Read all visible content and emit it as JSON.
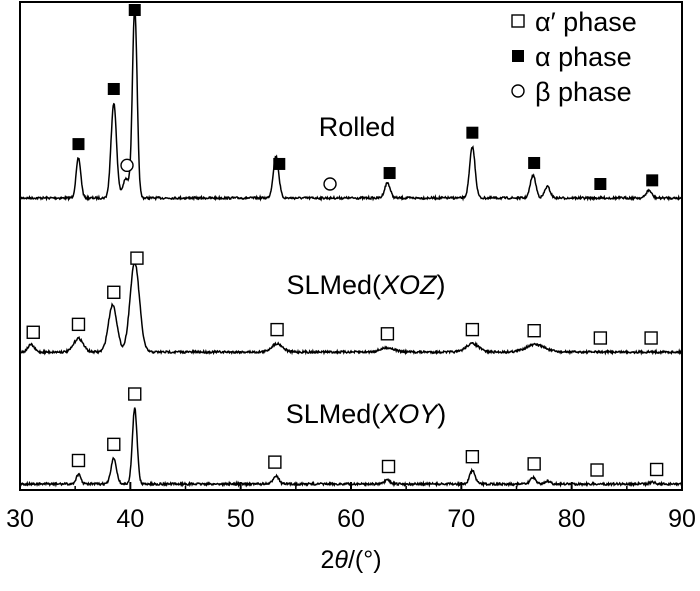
{
  "chart_data": {
    "type": "line",
    "xlabel_main": "2",
    "xlabel_theta": "θ",
    "xlabel_unit": "/(°)",
    "xlim": [
      30,
      90
    ],
    "x_ticks": [
      "30",
      "40",
      "50",
      "60",
      "70",
      "80",
      "90"
    ],
    "legend": {
      "placement": "top-right",
      "entries": [
        {
          "label": "α′ phase",
          "marker": "open-square"
        },
        {
          "label": "α phase",
          "marker": "filled-square"
        },
        {
          "label": "β phase",
          "marker": "open-circle"
        }
      ]
    },
    "series": [
      {
        "label_plain": "Rolled",
        "label_prefix": "",
        "label_italic": "",
        "label_suffix": "",
        "peaks": [
          {
            "x": 35.3,
            "h": 0.21,
            "w": 0.3
          },
          {
            "x": 38.5,
            "h": 0.5,
            "w": 0.35
          },
          {
            "x": 39.6,
            "h": 0.1,
            "w": 0.4
          },
          {
            "x": 40.4,
            "h": 1.0,
            "w": 0.3
          },
          {
            "x": 53.2,
            "h": 0.22,
            "w": 0.35
          },
          {
            "x": 63.3,
            "h": 0.08,
            "w": 0.35
          },
          {
            "x": 71.0,
            "h": 0.27,
            "w": 0.35
          },
          {
            "x": 76.5,
            "h": 0.12,
            "w": 0.35
          },
          {
            "x": 77.8,
            "h": 0.06,
            "w": 0.35
          },
          {
            "x": 87.0,
            "h": 0.04,
            "w": 0.35
          }
        ],
        "markers": [
          {
            "x": 35.3,
            "type": "filled-square"
          },
          {
            "x": 38.5,
            "type": "filled-square"
          },
          {
            "x": 39.7,
            "type": "open-circle"
          },
          {
            "x": 40.4,
            "type": "filled-square"
          },
          {
            "x": 53.5,
            "type": "filled-square"
          },
          {
            "x": 58.1,
            "type": "open-circle"
          },
          {
            "x": 63.5,
            "type": "filled-square"
          },
          {
            "x": 71.0,
            "type": "filled-square"
          },
          {
            "x": 76.6,
            "type": "filled-square"
          },
          {
            "x": 82.6,
            "type": "filled-square"
          },
          {
            "x": 87.3,
            "type": "filled-square"
          }
        ]
      },
      {
        "label_plain": "",
        "label_prefix": "SLMed(",
        "label_italic": "XOZ",
        "label_suffix": ")",
        "peaks": [
          {
            "x": 31.0,
            "h": 0.07,
            "w": 0.4
          },
          {
            "x": 35.3,
            "h": 0.13,
            "w": 0.6
          },
          {
            "x": 38.4,
            "h": 0.45,
            "w": 0.55
          },
          {
            "x": 40.4,
            "h": 0.85,
            "w": 0.6
          },
          {
            "x": 53.3,
            "h": 0.08,
            "w": 0.7
          },
          {
            "x": 63.3,
            "h": 0.04,
            "w": 0.9
          },
          {
            "x": 71.0,
            "h": 0.08,
            "w": 0.8
          },
          {
            "x": 76.7,
            "h": 0.07,
            "w": 1.2
          }
        ],
        "markers": [
          {
            "x": 31.2,
            "type": "open-square"
          },
          {
            "x": 35.3,
            "type": "open-square"
          },
          {
            "x": 38.5,
            "type": "open-square"
          },
          {
            "x": 40.6,
            "type": "open-square"
          },
          {
            "x": 53.3,
            "type": "open-square"
          },
          {
            "x": 63.3,
            "type": "open-square"
          },
          {
            "x": 71.0,
            "type": "open-square"
          },
          {
            "x": 76.6,
            "type": "open-square"
          },
          {
            "x": 82.6,
            "type": "open-square"
          },
          {
            "x": 87.2,
            "type": "open-square"
          }
        ]
      },
      {
        "label_plain": "",
        "label_prefix": "SLMed(",
        "label_italic": "XOY",
        "label_suffix": ")",
        "peaks": [
          {
            "x": 35.3,
            "h": 0.1,
            "w": 0.3
          },
          {
            "x": 38.5,
            "h": 0.27,
            "w": 0.35
          },
          {
            "x": 40.4,
            "h": 0.8,
            "w": 0.3
          },
          {
            "x": 53.2,
            "h": 0.09,
            "w": 0.35
          },
          {
            "x": 63.3,
            "h": 0.04,
            "w": 0.35
          },
          {
            "x": 71.0,
            "h": 0.14,
            "w": 0.35
          },
          {
            "x": 76.5,
            "h": 0.07,
            "w": 0.35
          },
          {
            "x": 77.8,
            "h": 0.03,
            "w": 0.35
          },
          {
            "x": 87.3,
            "h": 0.02,
            "w": 0.35
          }
        ],
        "markers": [
          {
            "x": 35.3,
            "type": "open-square"
          },
          {
            "x": 38.5,
            "type": "open-square"
          },
          {
            "x": 40.4,
            "type": "open-square"
          },
          {
            "x": 53.1,
            "type": "open-square"
          },
          {
            "x": 63.4,
            "type": "open-square"
          },
          {
            "x": 71.0,
            "type": "open-square"
          },
          {
            "x": 76.6,
            "type": "open-square"
          },
          {
            "x": 82.3,
            "type": "open-square"
          },
          {
            "x": 87.7,
            "type": "open-square"
          }
        ]
      }
    ],
    "grid": false
  }
}
